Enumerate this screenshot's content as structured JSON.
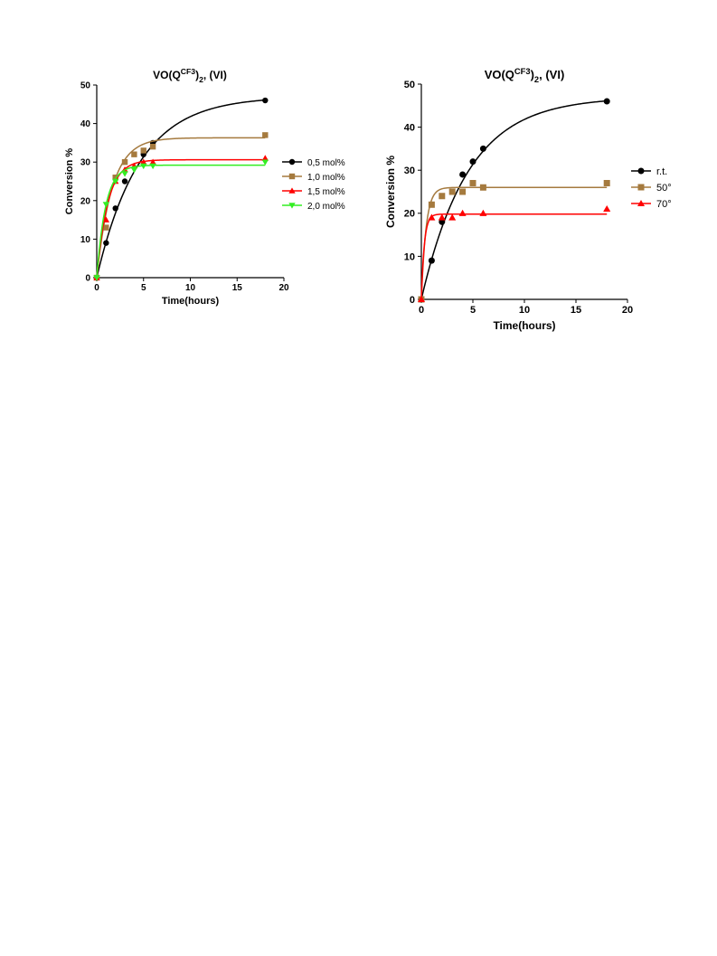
{
  "chart_data": [
    {
      "type": "scatter",
      "title_main": "VO(Q",
      "title_sup": "CF3",
      "title_after_sup": ")",
      "title_sub": "2",
      "title_tail": ", (VI)",
      "xlabel": "Time(hours)",
      "ylabel": "Conversion %",
      "xlim": [
        0,
        20
      ],
      "ylim": [
        0,
        50
      ],
      "xticks": [
        0,
        5,
        10,
        15,
        20
      ],
      "yticks": [
        0,
        10,
        20,
        30,
        40,
        50
      ],
      "legend_position": "right",
      "series": [
        {
          "name": "0,5 mol%",
          "color": "#000000",
          "marker": "circle",
          "x": [
            0,
            1,
            2,
            3,
            5,
            6,
            18
          ],
          "y": [
            0,
            9,
            18,
            25,
            32,
            35,
            46
          ],
          "fit_plateau": 47,
          "fit_rate": 0.22
        },
        {
          "name": "1,0 mol%",
          "color": "#a57a3e",
          "marker": "square",
          "x": [
            0,
            1,
            2,
            3,
            4,
            5,
            6,
            18
          ],
          "y": [
            0,
            13,
            26,
            30,
            32,
            33,
            34,
            37
          ],
          "fit_plateau": 36.3,
          "fit_rate": 0.62
        },
        {
          "name": "1,5 mol%",
          "color": "#ff0000",
          "marker": "triangle-up",
          "x": [
            0,
            1,
            2,
            3,
            4,
            5,
            6,
            18
          ],
          "y": [
            0,
            15,
            25,
            28,
            29,
            30,
            30,
            31
          ],
          "fit_plateau": 30.6,
          "fit_rate": 0.85
        },
        {
          "name": "2,0 mol%",
          "color": "#33ee22",
          "marker": "triangle-down",
          "x": [
            0,
            1,
            2,
            3,
            4,
            5,
            6,
            18
          ],
          "y": [
            0,
            19,
            25,
            27,
            28,
            29,
            29,
            30
          ],
          "fit_plateau": 29.2,
          "fit_rate": 1.05
        }
      ]
    },
    {
      "type": "scatter",
      "title_main": "VO(Q",
      "title_sup": "CF3",
      "title_after_sup": ")",
      "title_sub": "2",
      "title_tail": ", (VI)",
      "xlabel": "Time(hours)",
      "ylabel": "Conversion %",
      "xlim": [
        0,
        20
      ],
      "ylim": [
        0,
        50
      ],
      "xticks": [
        0,
        5,
        10,
        15,
        20
      ],
      "yticks": [
        0,
        10,
        20,
        30,
        40,
        50
      ],
      "legend_position": "right",
      "series": [
        {
          "name": "r.t.",
          "color": "#000000",
          "marker": "circle",
          "x": [
            0,
            1,
            2,
            4,
            5,
            6,
            18
          ],
          "y": [
            0,
            9,
            18,
            29,
            32,
            35,
            46
          ],
          "fit_plateau": 47,
          "fit_rate": 0.22
        },
        {
          "name": "50°",
          "color": "#a57a3e",
          "marker": "square",
          "x": [
            0,
            1,
            2,
            3,
            4,
            5,
            6,
            18
          ],
          "y": [
            0,
            22,
            24,
            25,
            25,
            27,
            26,
            27
          ],
          "fit_plateau": 26,
          "fit_rate": 2.2
        },
        {
          "name": "70°",
          "color": "#ff0000",
          "marker": "triangle-up",
          "x": [
            0,
            1,
            2,
            3,
            4,
            6,
            18
          ],
          "y": [
            0,
            19,
            19,
            19,
            20,
            20,
            21
          ],
          "fit_plateau": 19.8,
          "fit_rate": 3.5
        }
      ]
    }
  ]
}
